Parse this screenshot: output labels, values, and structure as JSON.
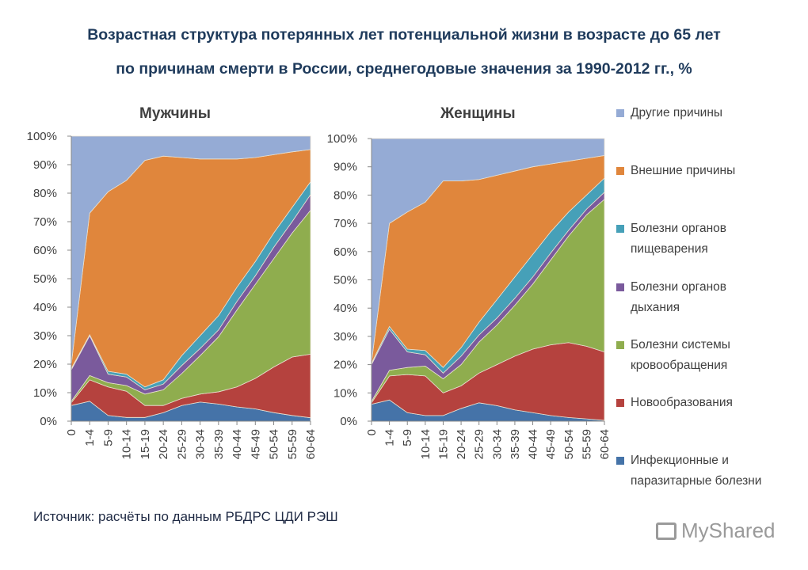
{
  "title_line1": "Возрастная структура потерянных лет потенциальной жизни в возрасте до 65 лет",
  "title_line2": "по причинам смерти в России, среднегодовые значения за 1990-2012 гг., %",
  "source": "Источник: расчёты по данным РБДРС ЦДИ РЭШ",
  "watermark": "MyShared",
  "legend": [
    {
      "name": "Другие причины",
      "color": "#95abd5"
    },
    {
      "name": "Внешние причины",
      "color": "#e0863c"
    },
    {
      "name": "Болезни органов пищеварения",
      "color": "#46a0b8"
    },
    {
      "name": "Болезни органов дыхания",
      "color": "#7a5a9c"
    },
    {
      "name": "Болезни системы кровообращения",
      "color": "#8fad4e"
    },
    {
      "name": "Новообразования",
      "color": "#b5423e"
    },
    {
      "name": "Инфекционные и паразитарные болезни",
      "color": "#4573a8"
    }
  ],
  "chart_data": [
    {
      "type": "area",
      "stacked": "percent",
      "title": "Мужчины",
      "categories": [
        "0",
        "1-4",
        "5-9",
        "10-14",
        "15-19",
        "20-24",
        "25-29",
        "30-34",
        "35-39",
        "40-44",
        "45-49",
        "50-54",
        "55-59",
        "60-64"
      ],
      "yticks": [
        "0%",
        "10%",
        "20%",
        "30%",
        "40%",
        "50%",
        "60%",
        "70%",
        "80%",
        "90%",
        "100%"
      ],
      "ylim": [
        0,
        100
      ],
      "series": [
        {
          "name": "Инфекционные и паразитарные болезни",
          "values": [
            5.5,
            7,
            2,
            1.3,
            1.3,
            3,
            5.5,
            6.7,
            6,
            5,
            4.3,
            3,
            2,
            1.2
          ]
        },
        {
          "name": "Новообразования",
          "values": [
            1,
            7.5,
            10,
            9.2,
            4.2,
            2.5,
            2.5,
            2.8,
            4.3,
            7,
            10.7,
            16,
            20.5,
            22.3
          ]
        },
        {
          "name": "Болезни системы кровообращения",
          "values": [
            0.5,
            1.5,
            1.5,
            2,
            4,
            5.5,
            8.7,
            13.5,
            19.3,
            27,
            33,
            38,
            43.5,
            50.5
          ]
        },
        {
          "name": "Болезни органов дыхания",
          "values": [
            11,
            14,
            3,
            3,
            1.5,
            2,
            2.8,
            2.5,
            2.4,
            3,
            3,
            4,
            4,
            5.5
          ]
        },
        {
          "name": "Болезни органов пищеварения",
          "values": [
            0.5,
            0.3,
            1,
            1,
            1,
            1.5,
            3.5,
            4.5,
            5,
            5,
            5,
            5,
            5,
            4.5
          ]
        },
        {
          "name": "Внешние причины",
          "values": [
            1.5,
            42.7,
            63,
            68,
            79.5,
            78.5,
            69.5,
            62,
            55,
            45,
            36.5,
            27.5,
            19.5,
            11.3
          ]
        },
        {
          "name": "Другие причины",
          "values": [
            80,
            27,
            19.5,
            15.5,
            8.5,
            7,
            7.5,
            8,
            8,
            8,
            7.5,
            6.5,
            5.5,
            4.7
          ]
        }
      ]
    },
    {
      "type": "area",
      "stacked": "percent",
      "title": "Женщины",
      "categories": [
        "0",
        "1-4",
        "5-9",
        "10-14",
        "15-19",
        "20-24",
        "25-29",
        "30-34",
        "35-39",
        "40-44",
        "45-49",
        "50-54",
        "55-59",
        "60-64"
      ],
      "yticks": [
        "0%",
        "10%",
        "20%",
        "30%",
        "40%",
        "50%",
        "60%",
        "70%",
        "80%",
        "90%",
        "100%"
      ],
      "ylim": [
        0,
        100
      ],
      "series": [
        {
          "name": "Инфекционные и паразитарные болезни",
          "values": [
            6,
            7.5,
            3,
            2,
            2,
            4.5,
            6.5,
            5.5,
            4,
            3,
            2,
            1.3,
            0.8,
            0.3
          ]
        },
        {
          "name": "Новообразования",
          "values": [
            0.5,
            8.5,
            13.5,
            14,
            8,
            8,
            10.5,
            14.5,
            19,
            22.5,
            25,
            26.5,
            25.7,
            24.2
          ]
        },
        {
          "name": "Болезни системы кровообращения",
          "values": [
            0.5,
            2,
            2.5,
            3.5,
            5,
            7.5,
            11,
            14,
            18,
            23,
            30,
            37.7,
            46.5,
            54
          ]
        },
        {
          "name": "Болезни органов дыхания",
          "values": [
            13,
            14.5,
            5.5,
            4,
            2,
            3,
            2.5,
            2.5,
            2.5,
            2.5,
            2.5,
            2,
            2,
            2.5
          ]
        },
        {
          "name": "Болезни органов пищеварения",
          "values": [
            0.5,
            1,
            1,
            1.5,
            2,
            3,
            4.5,
            6.5,
            7.5,
            8,
            7.5,
            6.5,
            5,
            5
          ]
        },
        {
          "name": "Внешние причины",
          "values": [
            0.5,
            36.5,
            48.5,
            52.5,
            66,
            59,
            50.5,
            44,
            37.5,
            31,
            24,
            18,
            13,
            8
          ]
        },
        {
          "name": "Другие причины",
          "values": [
            79,
            30,
            26,
            22.5,
            15,
            15,
            14.5,
            13,
            11.5,
            10,
            9,
            8,
            7,
            6
          ]
        }
      ]
    }
  ]
}
